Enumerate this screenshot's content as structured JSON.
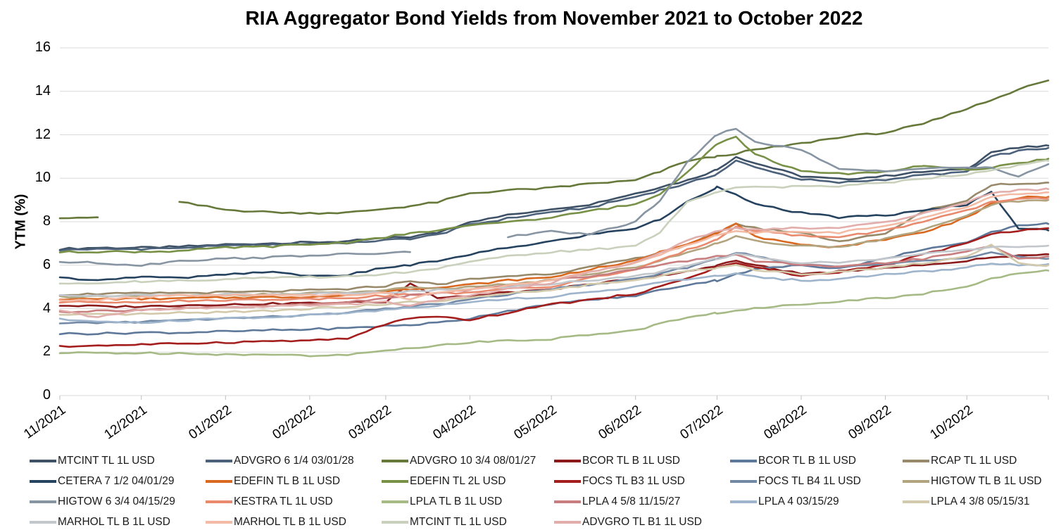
{
  "chart_data": {
    "type": "line",
    "title": "RIA Aggregator Bond Yields from November 2021 to October 2022",
    "ylabel": "YTM (%)",
    "xlabel": "",
    "ylim": [
      0,
      16
    ],
    "y_ticks": [
      0,
      2,
      4,
      6,
      8,
      10,
      12,
      14,
      16
    ],
    "grid": "horizontal",
    "legend_position": "bottom",
    "colors": {
      "gridline": "#D9D9D9",
      "axis_line": "#D9D9D9",
      "tick_mark": "#BFBFBF",
      "title_text": "#000000",
      "axis_text": "#000000",
      "legend_text": "#1A1A1A"
    },
    "x_unit": "days since 2021-11-01",
    "x": [
      0,
      14,
      30,
      44,
      61,
      75,
      92,
      106,
      120,
      129,
      139,
      151,
      165,
      181,
      195,
      212,
      221,
      231,
      242,
      249,
      256,
      273,
      287,
      304,
      318,
      334,
      343,
      353,
      364
    ],
    "x_ticks": [
      {
        "label": "11/2021",
        "day": 0
      },
      {
        "label": "12/2021",
        "day": 30
      },
      {
        "label": "01/2022",
        "day": 61
      },
      {
        "label": "02/2022",
        "day": 92
      },
      {
        "label": "03/2022",
        "day": 120
      },
      {
        "label": "04/2022",
        "day": 151
      },
      {
        "label": "05/2022",
        "day": 181
      },
      {
        "label": "06/2022",
        "day": 212
      },
      {
        "label": "07/2022",
        "day": 242
      },
      {
        "label": "08/2022",
        "day": 273
      },
      {
        "label": "09/2022",
        "day": 304
      },
      {
        "label": "10/2022",
        "day": 334
      }
    ],
    "tick_mark_days": [
      0,
      30,
      61,
      92,
      120,
      151,
      181,
      212,
      242,
      273,
      304,
      334,
      364
    ],
    "series": [
      {
        "name": "MTCINT TL 1L USD",
        "color": "#3E5166",
        "values": [
          6.75,
          6.8,
          6.8,
          6.85,
          6.95,
          7.0,
          7.05,
          7.1,
          7.25,
          7.3,
          7.5,
          8.0,
          8.3,
          8.6,
          8.8,
          9.3,
          9.6,
          9.9,
          10.4,
          11.0,
          10.7,
          10.1,
          9.95,
          10.1,
          10.3,
          10.4,
          11.2,
          11.4,
          11.5
        ]
      },
      {
        "name": "ADVGRO 6 1/4 03/01/28",
        "color": "#4C617A",
        "values": [
          6.7,
          6.73,
          6.75,
          6.8,
          6.88,
          6.93,
          6.98,
          7.03,
          7.15,
          7.22,
          7.4,
          7.85,
          8.15,
          8.45,
          8.65,
          9.15,
          9.45,
          9.75,
          10.2,
          10.8,
          10.5,
          9.95,
          9.8,
          9.95,
          10.15,
          10.3,
          11.0,
          11.25,
          11.4
        ]
      },
      {
        "name": "ADVGRO 10 3/4 08/01/27",
        "color": "#66793A",
        "values": [
          8.2,
          8.2,
          null,
          8.9,
          8.55,
          8.45,
          8.4,
          8.42,
          8.6,
          8.72,
          8.9,
          9.3,
          9.45,
          9.55,
          9.75,
          9.9,
          10.3,
          10.8,
          11.0,
          11.15,
          11.3,
          11.6,
          11.9,
          12.1,
          12.5,
          13.2,
          13.6,
          14.1,
          14.5
        ]
      },
      {
        "name": "BCOR TL B 1L USD",
        "color": "#8C1A1A",
        "values": [
          4.15,
          4.1,
          4.1,
          4.15,
          4.2,
          4.22,
          4.25,
          4.28,
          4.3,
          5.2,
          4.5,
          4.6,
          4.75,
          4.9,
          5.1,
          5.4,
          5.5,
          5.7,
          6.0,
          6.2,
          6.0,
          5.6,
          5.7,
          5.9,
          6.0,
          6.2,
          6.35,
          6.45,
          6.5
        ]
      },
      {
        "name": "BCOR TL B 1L USD",
        "color": "#5E7899",
        "values": [
          2.85,
          2.85,
          2.9,
          2.9,
          2.95,
          3.0,
          3.05,
          3.1,
          3.2,
          3.25,
          3.35,
          3.55,
          3.9,
          4.2,
          4.4,
          4.6,
          4.85,
          5.1,
          5.3,
          5.6,
          5.8,
          6.0,
          5.85,
          6.3,
          6.75,
          7.0,
          7.5,
          7.85,
          7.9
        ]
      },
      {
        "name": "RCAP TL 1L USD",
        "color": "#97896A",
        "values": [
          4.65,
          4.68,
          4.7,
          4.72,
          4.75,
          4.78,
          4.85,
          4.9,
          5.05,
          5.3,
          5.1,
          5.35,
          5.5,
          5.6,
          5.9,
          6.3,
          6.6,
          6.9,
          7.5,
          7.9,
          7.7,
          7.5,
          7.1,
          7.45,
          8.5,
          9.0,
          9.7,
          9.75,
          9.8
        ]
      },
      {
        "name": "CETERA 7 1/2 04/01/29",
        "color": "#25425F",
        "values": [
          5.4,
          5.35,
          5.45,
          5.4,
          5.55,
          5.7,
          5.5,
          5.55,
          5.9,
          6.0,
          6.2,
          6.5,
          6.8,
          7.1,
          7.4,
          7.7,
          8.1,
          8.9,
          9.6,
          9.3,
          8.8,
          8.4,
          8.2,
          8.3,
          8.5,
          8.8,
          9.4,
          7.7,
          7.6
        ]
      },
      {
        "name": "EDEFIN TL B 1L USD",
        "color": "#D96820",
        "values": [
          4.45,
          4.45,
          4.45,
          4.48,
          4.5,
          4.52,
          4.55,
          4.6,
          4.8,
          4.9,
          5.0,
          5.1,
          5.3,
          5.45,
          5.8,
          6.2,
          6.6,
          7.0,
          7.5,
          7.9,
          7.3,
          6.9,
          6.85,
          7.2,
          7.5,
          8.2,
          8.8,
          9.1,
          9.15
        ]
      },
      {
        "name": "EDEFIN TL 2L USD",
        "color": "#789147",
        "values": [
          6.6,
          6.62,
          6.62,
          6.65,
          6.8,
          6.85,
          6.95,
          7.05,
          7.3,
          7.45,
          7.6,
          7.8,
          8.0,
          8.2,
          8.5,
          8.8,
          9.3,
          10.3,
          11.6,
          11.9,
          11.1,
          10.3,
          10.2,
          10.3,
          10.6,
          10.35,
          10.5,
          10.7,
          10.9
        ]
      },
      {
        "name": "FOCS TL B3 1L USD",
        "color": "#A41E1E",
        "values": [
          2.25,
          2.3,
          2.35,
          2.4,
          2.45,
          2.5,
          2.55,
          2.6,
          3.3,
          3.55,
          3.6,
          3.5,
          3.8,
          4.2,
          4.4,
          4.7,
          5.0,
          5.4,
          5.9,
          6.1,
          5.9,
          5.5,
          5.7,
          6.0,
          6.5,
          7.0,
          7.4,
          7.6,
          7.7
        ]
      },
      {
        "name": "FOCS TL B4 1L USD",
        "color": "#7289A6",
        "values": [
          3.3,
          3.35,
          3.4,
          3.45,
          3.55,
          3.6,
          3.7,
          3.8,
          4.0,
          4.1,
          4.2,
          4.4,
          4.65,
          4.9,
          5.1,
          5.35,
          5.6,
          5.9,
          6.3,
          6.6,
          6.4,
          6.0,
          5.95,
          6.1,
          6.2,
          6.3,
          6.55,
          6.4,
          6.3
        ]
      },
      {
        "name": "HIGTOW TL B 1L USD",
        "color": "#B1A47E",
        "values": [
          4.55,
          4.55,
          4.58,
          4.6,
          4.62,
          4.65,
          4.7,
          4.75,
          4.85,
          4.95,
          4.9,
          5.0,
          5.15,
          5.3,
          5.6,
          5.9,
          6.2,
          6.6,
          7.0,
          7.3,
          7.1,
          6.9,
          6.85,
          7.2,
          7.6,
          8.3,
          8.8,
          8.95,
          9.0
        ]
      },
      {
        "name": "HIGTOW 6 3/4 04/15/29",
        "color": "#8794A2",
        "values": [
          6.15,
          6.1,
          6.0,
          6.2,
          6.3,
          6.35,
          6.45,
          6.5,
          6.55,
          6.6,
          null,
          null,
          7.3,
          7.55,
          7.4,
          8.0,
          9.0,
          10.7,
          12.0,
          12.3,
          11.7,
          11.3,
          10.4,
          10.35,
          10.45,
          10.5,
          10.45,
          10.1,
          10.65
        ]
      },
      {
        "name": "KESTRA TL 1L USD",
        "color": "#E98A6E",
        "values": [
          4.3,
          4.3,
          4.32,
          4.35,
          4.4,
          4.42,
          4.45,
          4.5,
          4.6,
          4.65,
          4.7,
          4.75,
          4.9,
          5.0,
          5.4,
          5.8,
          6.2,
          6.7,
          7.2,
          7.8,
          7.6,
          7.35,
          7.3,
          7.6,
          8.0,
          8.5,
          8.9,
          9.05,
          9.1
        ]
      },
      {
        "name": "LPLA TL B 1L USD",
        "color": "#A6BA85",
        "values": [
          1.95,
          1.97,
          1.95,
          1.95,
          1.9,
          1.88,
          1.85,
          1.85,
          2.1,
          2.2,
          2.3,
          2.45,
          2.55,
          2.6,
          2.8,
          3.0,
          3.3,
          3.6,
          3.8,
          3.9,
          4.0,
          4.2,
          4.35,
          4.5,
          4.7,
          5.0,
          5.4,
          5.6,
          5.75
        ]
      },
      {
        "name": "LPLA 4 5/8 11/15/27",
        "color": "#C87E7E",
        "values": [
          3.85,
          3.9,
          3.95,
          4.0,
          4.05,
          4.1,
          4.2,
          4.3,
          4.5,
          4.6,
          4.7,
          4.9,
          5.1,
          5.3,
          5.5,
          5.8,
          6.0,
          6.2,
          6.4,
          6.5,
          6.2,
          6.0,
          5.9,
          6.1,
          6.3,
          6.6,
          6.9,
          6.3,
          6.4
        ]
      },
      {
        "name": "LPLA 4 03/15/29",
        "color": "#9EB4CC",
        "values": [
          3.5,
          3.4,
          3.35,
          3.45,
          3.55,
          3.6,
          3.7,
          3.8,
          3.95,
          4.05,
          4.15,
          4.3,
          4.45,
          4.55,
          4.75,
          5.0,
          5.2,
          5.35,
          5.5,
          5.6,
          5.45,
          5.3,
          5.35,
          5.6,
          5.7,
          5.9,
          6.1,
          6.0,
          6.05
        ]
      },
      {
        "name": "LPLA 4 3/8 05/15/31",
        "color": "#D3C9AB",
        "values": [
          3.7,
          3.72,
          3.75,
          3.8,
          3.85,
          3.9,
          4.0,
          4.1,
          4.2,
          4.3,
          4.35,
          4.5,
          4.7,
          4.85,
          5.1,
          5.3,
          5.5,
          5.7,
          5.9,
          6.0,
          5.8,
          5.6,
          5.7,
          5.9,
          6.1,
          6.4,
          6.9,
          6.1,
          6.0
        ]
      },
      {
        "name": "MARHOL TL B 1L USD",
        "color": "#C2C7CC",
        "values": [
          4.6,
          4.6,
          4.62,
          4.62,
          4.65,
          4.65,
          4.68,
          4.7,
          4.75,
          4.8,
          4.85,
          4.9,
          5.0,
          5.15,
          5.3,
          5.5,
          5.7,
          6.0,
          6.3,
          6.5,
          6.4,
          6.1,
          6.15,
          6.3,
          6.5,
          6.7,
          6.85,
          6.8,
          6.9
        ]
      },
      {
        "name": "MARHOL TL B 1L USD",
        "color": "#F3BBA5",
        "values": [
          4.35,
          4.4,
          4.55,
          4.6,
          4.6,
          4.62,
          4.6,
          4.65,
          4.7,
          4.45,
          4.75,
          4.9,
          5.05,
          5.3,
          5.7,
          6.1,
          6.5,
          6.9,
          7.4,
          7.6,
          7.5,
          7.55,
          7.5,
          7.8,
          8.2,
          8.7,
          9.1,
          9.3,
          9.35
        ]
      },
      {
        "name": "MTCINT TL 1L USD",
        "color": "#C9D1BC",
        "values": [
          5.18,
          5.2,
          5.25,
          5.3,
          5.35,
          5.4,
          5.45,
          5.5,
          5.6,
          5.7,
          5.85,
          6.2,
          6.4,
          6.6,
          6.7,
          6.9,
          7.5,
          8.9,
          9.4,
          9.6,
          9.6,
          9.6,
          9.65,
          9.8,
          10.0,
          10.2,
          10.4,
          10.6,
          10.8
        ]
      },
      {
        "name": "ADVGRO TL B1 1L USD",
        "color": "#E2AEAB",
        "values": [
          3.9,
          3.6,
          3.95,
          4.0,
          4.05,
          4.1,
          4.15,
          4.2,
          4.35,
          4.1,
          4.4,
          4.6,
          4.9,
          5.2,
          5.7,
          6.1,
          6.6,
          7.1,
          7.6,
          7.7,
          7.65,
          7.7,
          7.75,
          7.95,
          8.4,
          8.9,
          9.3,
          9.45,
          9.5
        ]
      }
    ]
  }
}
